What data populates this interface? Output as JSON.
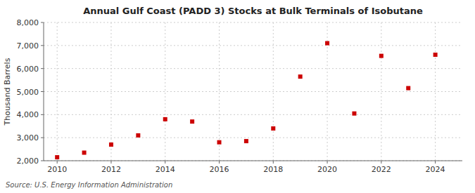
{
  "chart_data": {
    "type": "scatter",
    "title": "Annual Gulf Coast (PADD 3) Stocks at Bulk Terminals of Isobutane",
    "y_label": "Thousand Barrels",
    "annotations": [
      "Source: U.S. Energy Information Administration"
    ],
    "x": [
      2010,
      2011,
      2012,
      2013,
      2014,
      2015,
      2016,
      2017,
      2018,
      2019,
      2020,
      2021,
      2022,
      2023,
      2024
    ],
    "values": [
      2150,
      2350,
      2700,
      3100,
      3800,
      3700,
      2800,
      2850,
      3400,
      5650,
      7100,
      4050,
      6550,
      5150,
      6600
    ],
    "color": "#cc0000",
    "marker": "square",
    "grid": true,
    "xlim": [
      2009.5,
      2025.0
    ],
    "xticks": [
      2010,
      2012,
      2014,
      2016,
      2018,
      2020,
      2022,
      2024
    ],
    "ylim": [
      2000,
      8000
    ],
    "yticks": [
      {
        "value": 2000,
        "label": "2,000"
      },
      {
        "value": 3000,
        "label": "3,000"
      },
      {
        "value": 4000,
        "label": "4,000"
      },
      {
        "value": 5000,
        "label": "5,000"
      },
      {
        "value": 6000,
        "label": "6,000"
      },
      {
        "value": 7000,
        "label": "7,000"
      },
      {
        "value": 8000,
        "label": "8,000"
      }
    ]
  }
}
